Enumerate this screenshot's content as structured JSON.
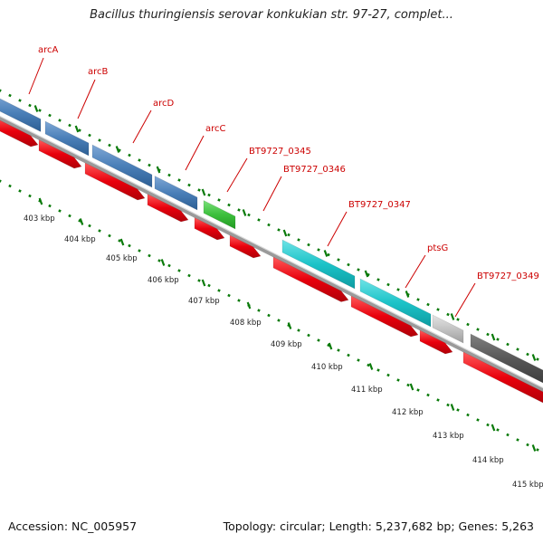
{
  "title": "Bacillus thuringiensis serovar konkukian str. 97-27, complet...",
  "footer": {
    "accession": "Accession: NC_005957",
    "summary": "Topology: circular; Length: 5,237,682 bp; Genes: 5,263"
  },
  "colors": {
    "blue_genes": "#4a7fb8",
    "green_gene": "#3cbf3c",
    "cyan_genes": "#1cc3c8",
    "light_gray_gene": "#c3c3c3",
    "dark_gray_gene": "#555555",
    "red_features": "#e8000c",
    "backbone": "#8a8a8a",
    "ticks": "#0a7a0a",
    "gene_labels": "#cc0000",
    "kbp_labels": "#222222"
  },
  "gene_labels": [
    {
      "text": "arcA",
      "color": "blue"
    },
    {
      "text": "arcB",
      "color": "blue"
    },
    {
      "text": "arcD",
      "color": "blue"
    },
    {
      "text": "arcC",
      "color": "blue"
    },
    {
      "text": "BT9727_0345",
      "color": "green"
    },
    {
      "text": "BT9727_0346",
      "color": "red"
    },
    {
      "text": "BT9727_0347",
      "color": "cyan"
    },
    {
      "text": "ptsG",
      "color": "cyan"
    },
    {
      "text": "BT9727_0349",
      "color": "light-gray"
    }
  ],
  "kbp_labels": [
    "403 kbp",
    "404 kbp",
    "405 kbp",
    "406 kbp",
    "407 kbp",
    "408 kbp",
    "409 kbp",
    "410 kbp",
    "411 kbp",
    "412 kbp",
    "413 kbp",
    "414 kbp",
    "415 kbp"
  ]
}
